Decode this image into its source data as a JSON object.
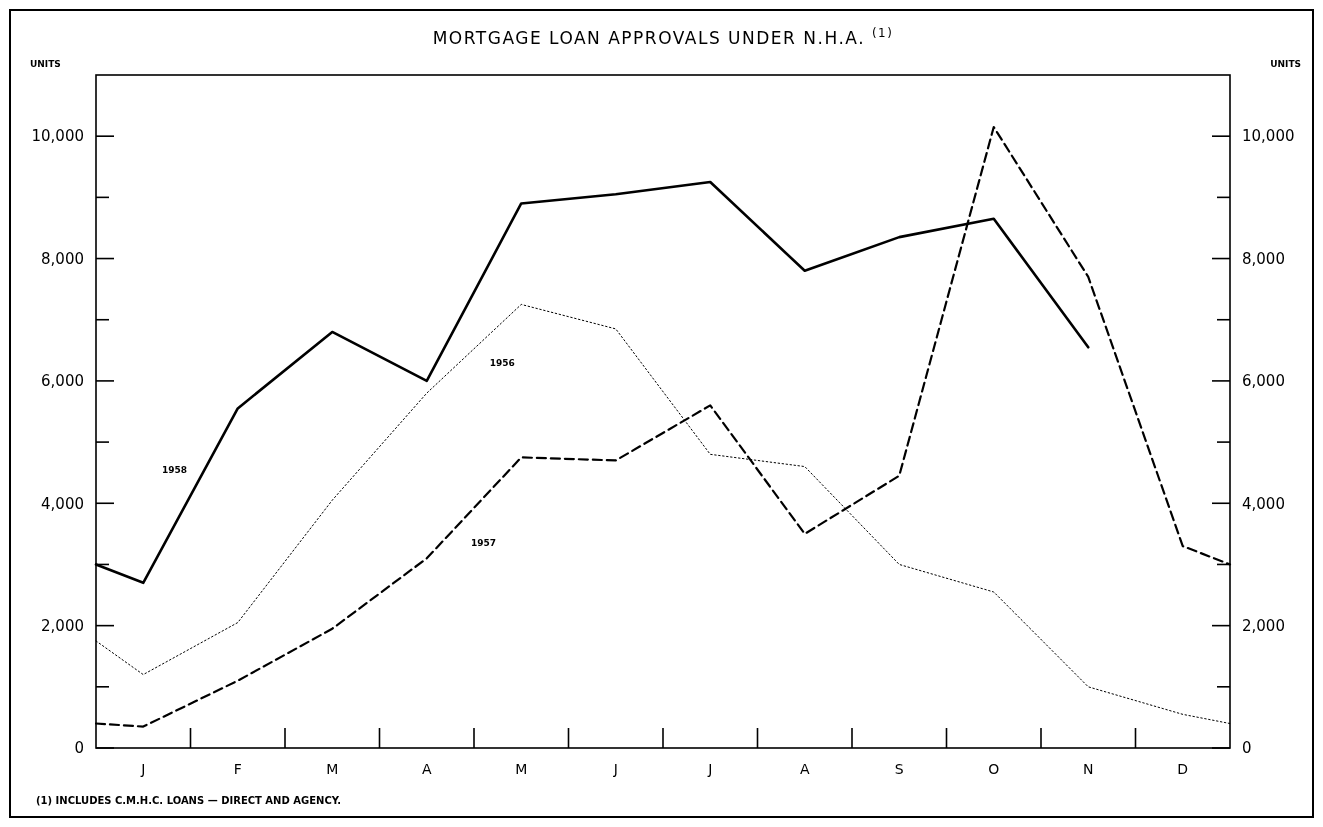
{
  "chart_data": {
    "type": "line",
    "title": "MORTGAGE LOAN APPROVALS UNDER N.H.A. $^{(1)}$",
    "ylabel": "UNITS",
    "y2label": "UNITS",
    "annotations": [
      "(1) INCLUDES C.M.H.C. LOANS — DIRECT AND AGENCY."
    ],
    "categories": [
      null,
      "J",
      null,
      "F",
      null,
      "M",
      null,
      "A",
      null,
      "M",
      null,
      "J",
      null,
      "J",
      null,
      "A",
      null,
      "S",
      null,
      "O",
      null,
      "N",
      null,
      "D",
      null
    ],
    "ylim": [
      0,
      11000
    ],
    "yticks": [
      {
        "value": 0,
        "label": "0"
      },
      {
        "value": 1000,
        "label": null
      },
      {
        "value": 2000,
        "label": "2,000"
      },
      {
        "value": 3000,
        "label": null
      },
      {
        "value": 4000,
        "label": "4,000"
      },
      {
        "value": 5000,
        "label": null
      },
      {
        "value": 6000,
        "label": "6,000"
      },
      {
        "value": 7000,
        "label": null
      },
      {
        "value": 8000,
        "label": "8,000"
      },
      {
        "value": 9000,
        "label": null
      },
      {
        "value": 10000,
        "label": "10,000"
      }
    ],
    "y2lim": [
      0,
      11000
    ],
    "y2ticks": [
      {
        "value": 0,
        "label": "0"
      },
      {
        "value": 1000,
        "label": null
      },
      {
        "value": 2000,
        "label": "2,000"
      },
      {
        "value": 3000,
        "label": null
      },
      {
        "value": 4000,
        "label": "4,000"
      },
      {
        "value": 5000,
        "label": null
      },
      {
        "value": 6000,
        "label": "6,000"
      },
      {
        "value": 7000,
        "label": null
      },
      {
        "value": 8000,
        "label": "8,000"
      },
      {
        "value": 9000,
        "label": null
      },
      {
        "value": 10000,
        "label": "10,000"
      }
    ],
    "grid": false,
    "marker": "none",
    "series": [
      {
        "name": "1958",
        "color": "#000000",
        "line_style": "solid",
        "values": [
          3000,
          2700,
          null,
          5550,
          null,
          6800,
          null,
          6000,
          null,
          8900,
          null,
          9050,
          null,
          9250,
          null,
          7800,
          null,
          8350,
          null,
          8650,
          null,
          6550,
          null,
          null,
          null
        ]
      },
      {
        "name": "1957",
        "color": "#000000",
        "line_style": "dashed",
        "values": [
          400,
          350,
          null,
          1100,
          null,
          1950,
          null,
          3100,
          null,
          4750,
          null,
          4700,
          null,
          5600,
          null,
          3500,
          null,
          4450,
          null,
          10150,
          null,
          7700,
          null,
          3300,
          3000
        ]
      },
      {
        "name": "1956",
        "color": "#000000",
        "line_style": "dotted",
        "values": [
          1750,
          1200,
          null,
          2050,
          null,
          4050,
          null,
          5800,
          null,
          7250,
          null,
          6850,
          null,
          4800,
          null,
          4600,
          null,
          3000,
          null,
          2550,
          null,
          1000,
          null,
          550,
          400
        ]
      }
    ]
  }
}
